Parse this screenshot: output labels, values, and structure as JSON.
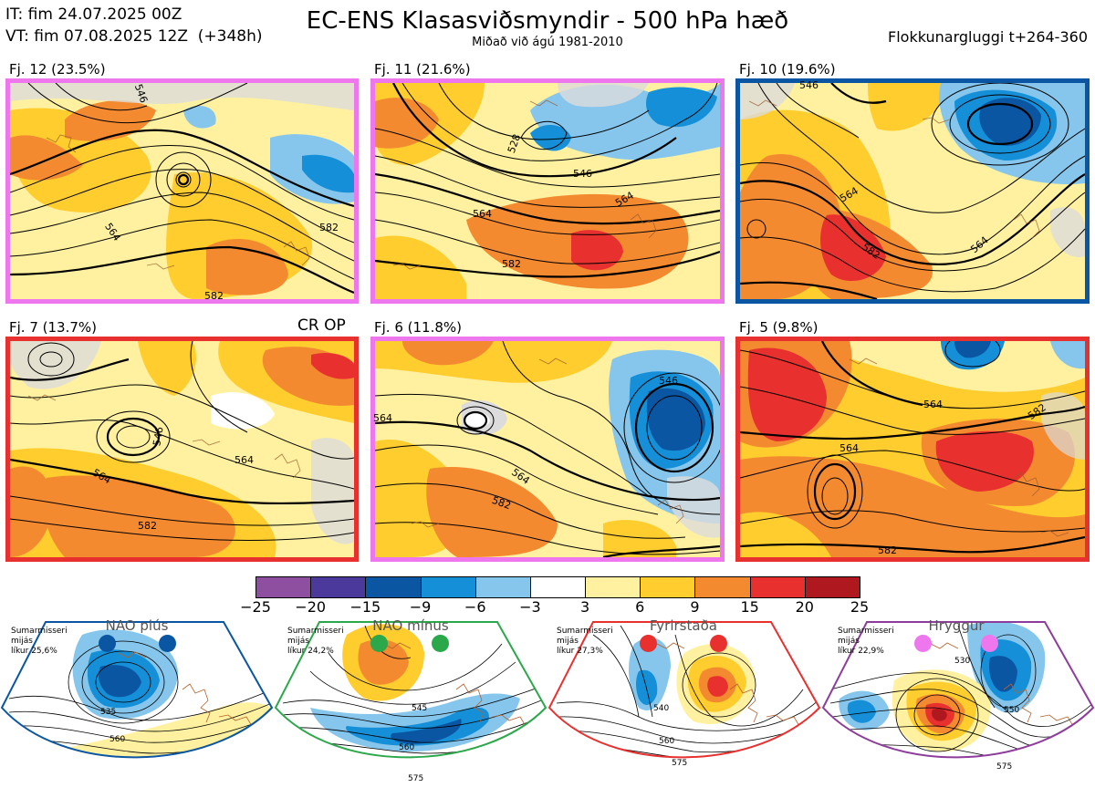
{
  "header": {
    "init_time": "IT: fim 24.07.2025 00Z",
    "valid_time": "VT: fim 07.08.2025 12Z  (+348h)",
    "title": "EC-ENS Klasasviðsmyndir - 500 hPa hæð",
    "subtitle": "Miðað við ágú 1981-2010",
    "window": "Flokkunargluggi t+264-360"
  },
  "colors": {
    "magenta": "#ee77ee",
    "blue": "#0a56a2",
    "red": "#e8312f",
    "green": "#2aa84a",
    "purple": "#8e3c9c"
  },
  "clusters": [
    {
      "label": "Fj. 12 (23.5%)",
      "border": "magenta",
      "contours": [
        "564",
        "582",
        "582",
        "546"
      ],
      "tag": ""
    },
    {
      "label": "Fj. 11 (21.6%)",
      "border": "magenta",
      "contours": [
        "528",
        "546",
        "564",
        "582",
        "564"
      ],
      "tag": ""
    },
    {
      "label": "Fj. 10 (19.6%)",
      "border": "blue",
      "contours": [
        "564",
        "582",
        "546",
        "564"
      ],
      "tag": ""
    },
    {
      "label": "Fj. 7 (13.7%)",
      "border": "red",
      "contours": [
        "546",
        "564",
        "582",
        "564"
      ],
      "tag": "CR OP"
    },
    {
      "label": "Fj. 6 (11.8%)",
      "border": "magenta",
      "contours": [
        "564",
        "546",
        "564",
        "582"
      ],
      "tag": ""
    },
    {
      "label": "Fj. 5 (9.8%)",
      "border": "red",
      "contours": [
        "564",
        "564",
        "582",
        "582"
      ],
      "tag": ""
    }
  ],
  "colorbar": {
    "ticks": [
      "−25",
      "−20",
      "−15",
      "−9",
      "−6",
      "−3",
      "3",
      "6",
      "9",
      "15",
      "20",
      "25"
    ],
    "colors": [
      "#8e4fa0",
      "#4b3a9b",
      "#0a56a2",
      "#1590d8",
      "#86c6ec",
      "#ffffff",
      "#fff1a0",
      "#ffcd2e",
      "#f48a30",
      "#e8312f",
      "#b01820"
    ]
  },
  "regimes": [
    {
      "name": "NAO plús",
      "season": "Sumarmisseri",
      "level": "mijás",
      "likelihood": "líkur 25,6%",
      "color": "blue",
      "contours": [
        "535",
        "560"
      ]
    },
    {
      "name": "NAO mínus",
      "season": "Sumarmisseri",
      "level": "mijás",
      "likelihood": "líkur 24,2%",
      "color": "green",
      "contours": [
        "545",
        "560",
        "575"
      ]
    },
    {
      "name": "Fyrirstaða",
      "season": "Sumarmisseri",
      "level": "mijás",
      "likelihood": "líkur 27,3%",
      "color": "red",
      "contours": [
        "540",
        "560",
        "575"
      ]
    },
    {
      "name": "Hryggur",
      "season": "Sumarmisseri",
      "level": "mijás",
      "likelihood": "líkur 22,9%",
      "color": "purple",
      "contours": [
        "530",
        "550",
        "575"
      ]
    }
  ]
}
